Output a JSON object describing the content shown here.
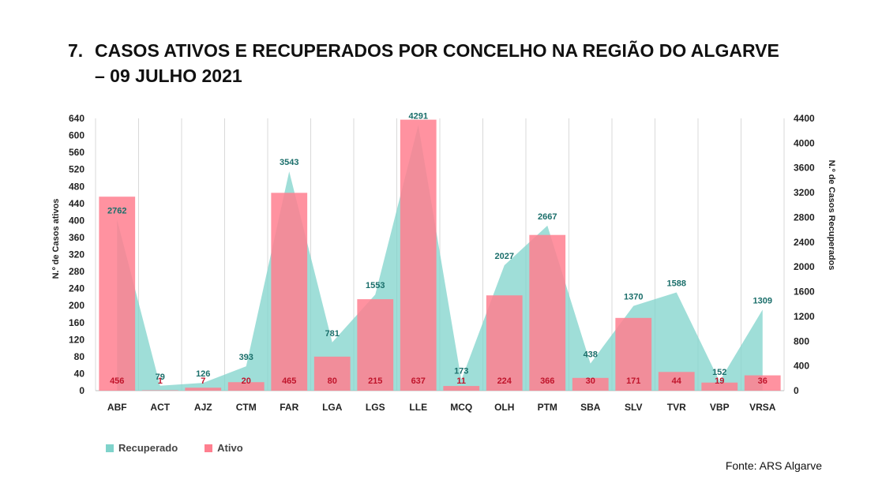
{
  "title": {
    "number": "7.",
    "line1": "CASOS ATIVOS E RECUPERADOS POR CONCELHO NA REGIÃO DO ALGARVE",
    "line2": "– 09 JULHO 2021"
  },
  "source": "Fonte: ARS Algarve",
  "colors": {
    "recuperado": "#7fd3cb",
    "ativo": "#ff7f8f",
    "recuperado_label": "#1a6e6a",
    "ativo_label": "#c0142b"
  },
  "chart_data": {
    "type": "bar",
    "categories": [
      "ABF",
      "ACT",
      "AJZ",
      "CTM",
      "FAR",
      "LGA",
      "LGS",
      "LLE",
      "MCQ",
      "OLH",
      "PTM",
      "SBA",
      "SLV",
      "TVR",
      "VBP",
      "VRSA"
    ],
    "series": [
      {
        "name": "Ativo",
        "type": "bar",
        "axis": "left",
        "values": [
          456,
          1,
          7,
          20,
          465,
          80,
          215,
          637,
          11,
          224,
          366,
          30,
          171,
          44,
          19,
          36
        ]
      },
      {
        "name": "Recuperado",
        "type": "area",
        "axis": "right",
        "values": [
          2762,
          79,
          126,
          393,
          3543,
          781,
          1553,
          4291,
          173,
          2027,
          2667,
          438,
          1370,
          1588,
          152,
          1309
        ]
      }
    ],
    "ylabel": "N.º de Casos ativos",
    "y2label": "N.º de Casos Recuperados",
    "ylim": [
      0,
      640
    ],
    "y2lim": [
      0,
      4400
    ],
    "yticks": [
      0,
      40,
      80,
      120,
      160,
      200,
      240,
      280,
      320,
      360,
      400,
      440,
      480,
      520,
      560,
      600,
      640
    ],
    "y2ticks": [
      0,
      400,
      800,
      1200,
      1600,
      2000,
      2400,
      2800,
      3200,
      3600,
      4000,
      4400
    ],
    "grid": "vertical",
    "legend": [
      "Recuperado",
      "Ativo"
    ],
    "legend_position": "bottom-left"
  }
}
